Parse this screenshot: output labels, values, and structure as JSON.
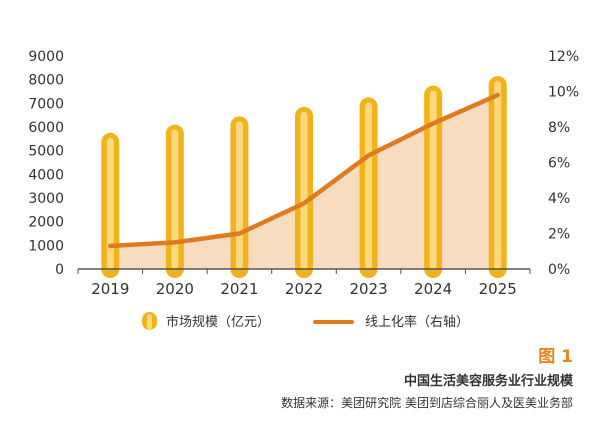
{
  "chart_data": {
    "type": "bar",
    "categories": [
      "2019",
      "2020",
      "2021",
      "2022",
      "2023",
      "2024",
      "2025"
    ],
    "series": [
      {
        "name": "市场规模（亿元）",
        "type": "bar",
        "axis": "left",
        "values": [
          5750,
          6100,
          6450,
          6850,
          7250,
          7750,
          8150
        ]
      },
      {
        "name": "线上化率（右轴）",
        "type": "line",
        "axis": "right",
        "values": [
          1.3,
          1.5,
          2.0,
          3.7,
          6.4,
          8.2,
          9.8
        ]
      }
    ],
    "y_left": {
      "ylim": [
        0,
        9000
      ],
      "ticks": [
        "0",
        "1000",
        "2000",
        "3000",
        "4000",
        "5000",
        "6000",
        "7000",
        "8000",
        "9000"
      ]
    },
    "y_right": {
      "ylim": [
        0,
        12
      ],
      "ticks": [
        "0%",
        "2%",
        "4%",
        "6%",
        "8%",
        "10%",
        "12%"
      ]
    },
    "title": "中国生活美容服务业行业规模",
    "grid": false,
    "legend_position": "bottom"
  },
  "figure_label": "图 1",
  "source": "数据来源：美团研究院  美团到店综合丽人及医美业务部",
  "colors": {
    "bar_outer": "#f3b21a",
    "bar_inner": "#fcd980",
    "line": "#e07a1f",
    "area": "#f8dcc0",
    "axis": "#555555"
  }
}
